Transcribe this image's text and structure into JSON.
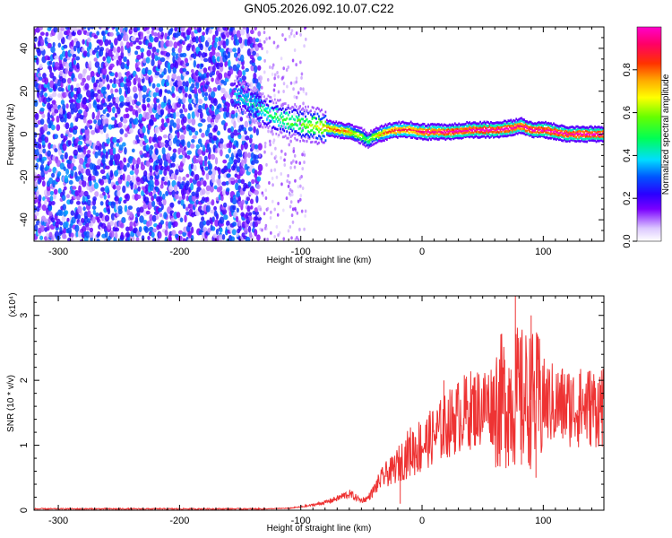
{
  "chart_data": [
    {
      "type": "heatmap",
      "title": "GN05.2026.092.10.07.C22",
      "xlabel": "Height of straight line (km)",
      "ylabel": "Frequency (Hz)",
      "xlim": [
        -320,
        150
      ],
      "ylim": [
        -50,
        50
      ],
      "x_ticks": [
        "-300",
        "-200",
        "-100",
        "0",
        "100"
      ],
      "y_ticks": [
        "40",
        "20",
        "0",
        "-20",
        "-40"
      ],
      "colorbar": {
        "label": "Normalized spectral amplitude",
        "range": [
          0,
          1
        ],
        "ticks": [
          "0.0",
          "0.2",
          "0.4",
          "0.6",
          "0.8"
        ]
      },
      "noise_region": {
        "x_from": -320,
        "x_to": -135,
        "amplitude": [
          0.05,
          0.35
        ]
      },
      "ridge": {
        "x": [
          -155,
          -140,
          -125,
          -110,
          -100,
          -90,
          -80,
          -70,
          -60,
          -55,
          -50,
          -45,
          -40,
          -30,
          -20,
          -10,
          0,
          20,
          40,
          60,
          75,
          80,
          90,
          100,
          110,
          120,
          130,
          140,
          150
        ],
        "frequency": [
          19,
          14,
          9,
          6,
          5,
          4,
          3,
          2,
          1,
          0,
          -1,
          -3,
          -1,
          1,
          2,
          2,
          1,
          1,
          2,
          2,
          3,
          4,
          2,
          2,
          1,
          0,
          0,
          0,
          0
        ],
        "amplitude": [
          0.35,
          0.4,
          0.45,
          0.5,
          0.55,
          0.6,
          0.7,
          0.75,
          0.7,
          0.6,
          0.55,
          0.45,
          0.6,
          0.8,
          0.85,
          0.85,
          0.9,
          0.95,
          0.95,
          0.95,
          0.95,
          0.9,
          0.95,
          0.95,
          0.95,
          0.95,
          0.95,
          0.95,
          0.95
        ]
      }
    },
    {
      "type": "line",
      "xlabel": "Height of straight line (km)",
      "ylabel": "SNR (10 * v/v)",
      "y_multiplier": "(x10⁴)",
      "xlim": [
        -320,
        150
      ],
      "ylim": [
        0,
        3.3
      ],
      "x_ticks": [
        "-300",
        "-200",
        "-100",
        "0",
        "100"
      ],
      "y_ticks": [
        "0",
        "1",
        "2",
        "3"
      ],
      "color": "#ee3333",
      "series": [
        {
          "x": [
            -320,
            -200,
            -130,
            -110,
            -100,
            -90,
            -80,
            -70,
            -65,
            -60,
            -55,
            -50,
            -45,
            -40,
            -35,
            -30,
            -25,
            -20,
            -10,
            0,
            10,
            20,
            30,
            40,
            50,
            60,
            70,
            75,
            80,
            85,
            90,
            100,
            110,
            120,
            130,
            140,
            150
          ],
          "values": [
            0.02,
            0.02,
            0.02,
            0.03,
            0.05,
            0.08,
            0.12,
            0.18,
            0.22,
            0.25,
            0.2,
            0.15,
            0.18,
            0.3,
            0.45,
            0.55,
            0.6,
            0.7,
            0.9,
            1.0,
            1.15,
            1.3,
            1.45,
            1.55,
            1.6,
            1.65,
            1.7,
            1.72,
            1.75,
            1.72,
            1.7,
            1.68,
            1.62,
            1.6,
            1.58,
            1.6,
            1.58
          ]
        }
      ],
      "spikes": [
        {
          "x": 77,
          "value": 3.3
        },
        {
          "x": 82,
          "value": 0.7
        },
        {
          "x": 90,
          "value": 3.0
        },
        {
          "x": 94,
          "value": 0.5
        },
        {
          "x": -18,
          "value": 0.1
        },
        {
          "x": 18,
          "value": 2.0
        },
        {
          "x": 130,
          "value": 2.1
        },
        {
          "x": 148,
          "value": 2.15
        }
      ]
    }
  ]
}
